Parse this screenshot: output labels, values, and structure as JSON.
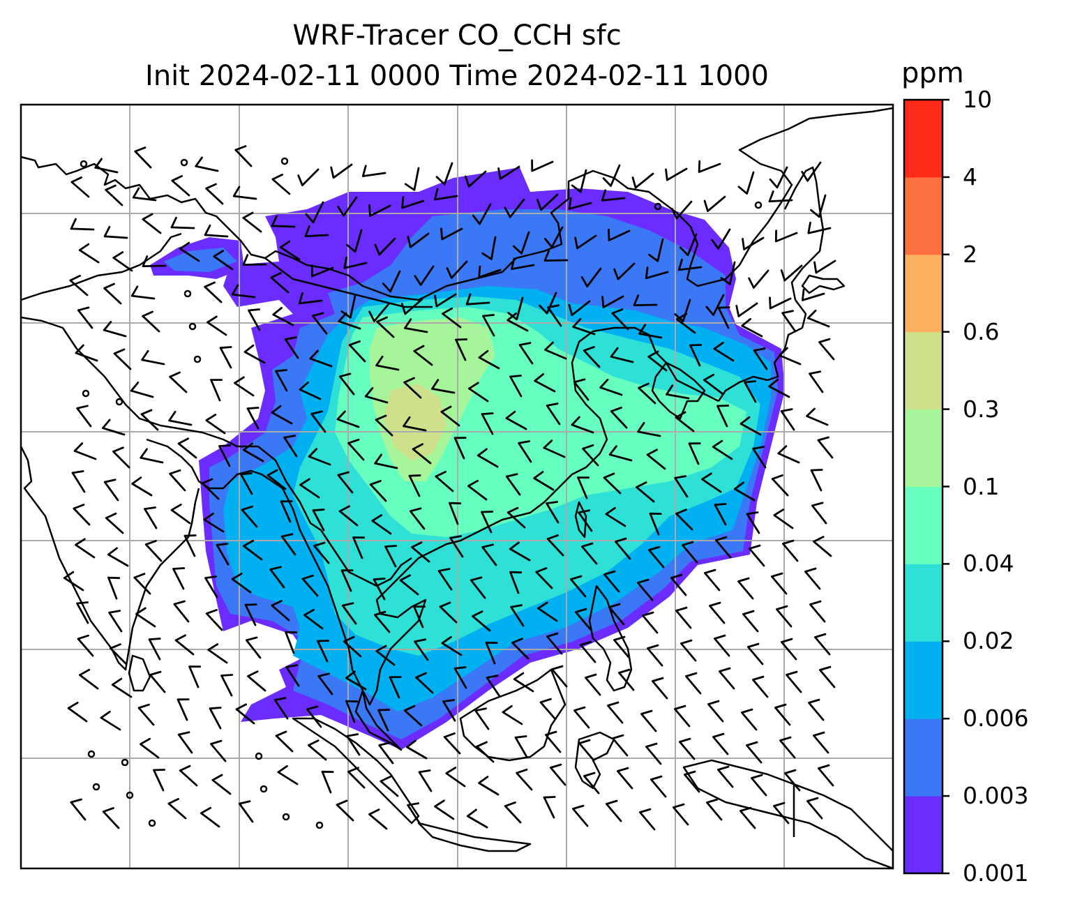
{
  "title": {
    "line1": "WRF-Tracer CO_CCH sfc",
    "line2": "Init 2024-02-11 0000 Time 2024-02-11 1000"
  },
  "colorbar": {
    "unit": "ppm",
    "levels": [
      "0.001",
      "0.003",
      "0.006",
      "0.02",
      "0.04",
      "0.1",
      "0.3",
      "0.6",
      "2",
      "4",
      "10"
    ],
    "colors": [
      "#6a2cff",
      "#3a78f6",
      "#00b0f0",
      "#2ee0d6",
      "#66ffc0",
      "#a6f59a",
      "#cfe08a",
      "#fcb060",
      "#fd7040",
      "#ff2a18"
    ]
  },
  "map": {
    "field_colors": {
      "lvl1": "#6a2cff",
      "lvl2": "#3a78f6",
      "lvl3": "#00b0f0",
      "lvl4": "#2ee0d6",
      "lvl5": "#66ffc0",
      "lvl6": "#a6f59a",
      "lvl7": "#cfe08a"
    },
    "gridline_color": "#aaaaaa",
    "coastline_color": "#000000",
    "wind_barb_color": "#000000"
  }
}
